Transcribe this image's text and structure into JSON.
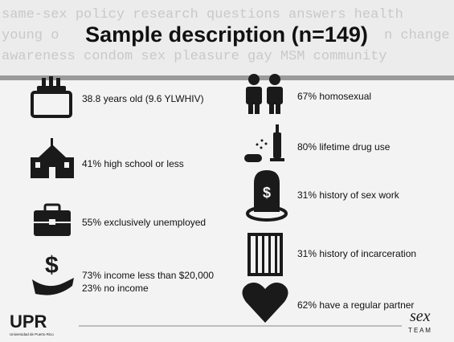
{
  "background_words": [
    "same-sex policy research questions answers health",
    "young o",
    "n change",
    "awareness condom sex pleasure gay MSM community"
  ],
  "title": "Sample description (n=149)",
  "left_items": [
    {
      "lines": [
        "38.8 years old (9.6 YLWHIV)"
      ]
    },
    {
      "lines": [
        "41% high school or less"
      ]
    },
    {
      "lines": [
        "55% exclusively unemployed"
      ]
    },
    {
      "lines": [
        "73% income less than $20,000",
        "23% no income"
      ]
    }
  ],
  "right_items": [
    {
      "lines": [
        "67% homosexual"
      ]
    },
    {
      "lines": [
        "80% lifetime drug use"
      ]
    },
    {
      "lines": [
        "31% history of sex work"
      ]
    },
    {
      "lines": [
        "31% history of incarceration"
      ]
    },
    {
      "lines": [
        "62% have a regular partner"
      ]
    }
  ],
  "footer": {
    "logo": "UPR",
    "logo_subtitle": "Universidad de Puerto Rico",
    "brand": "sex",
    "brand_team": "T E A M"
  }
}
